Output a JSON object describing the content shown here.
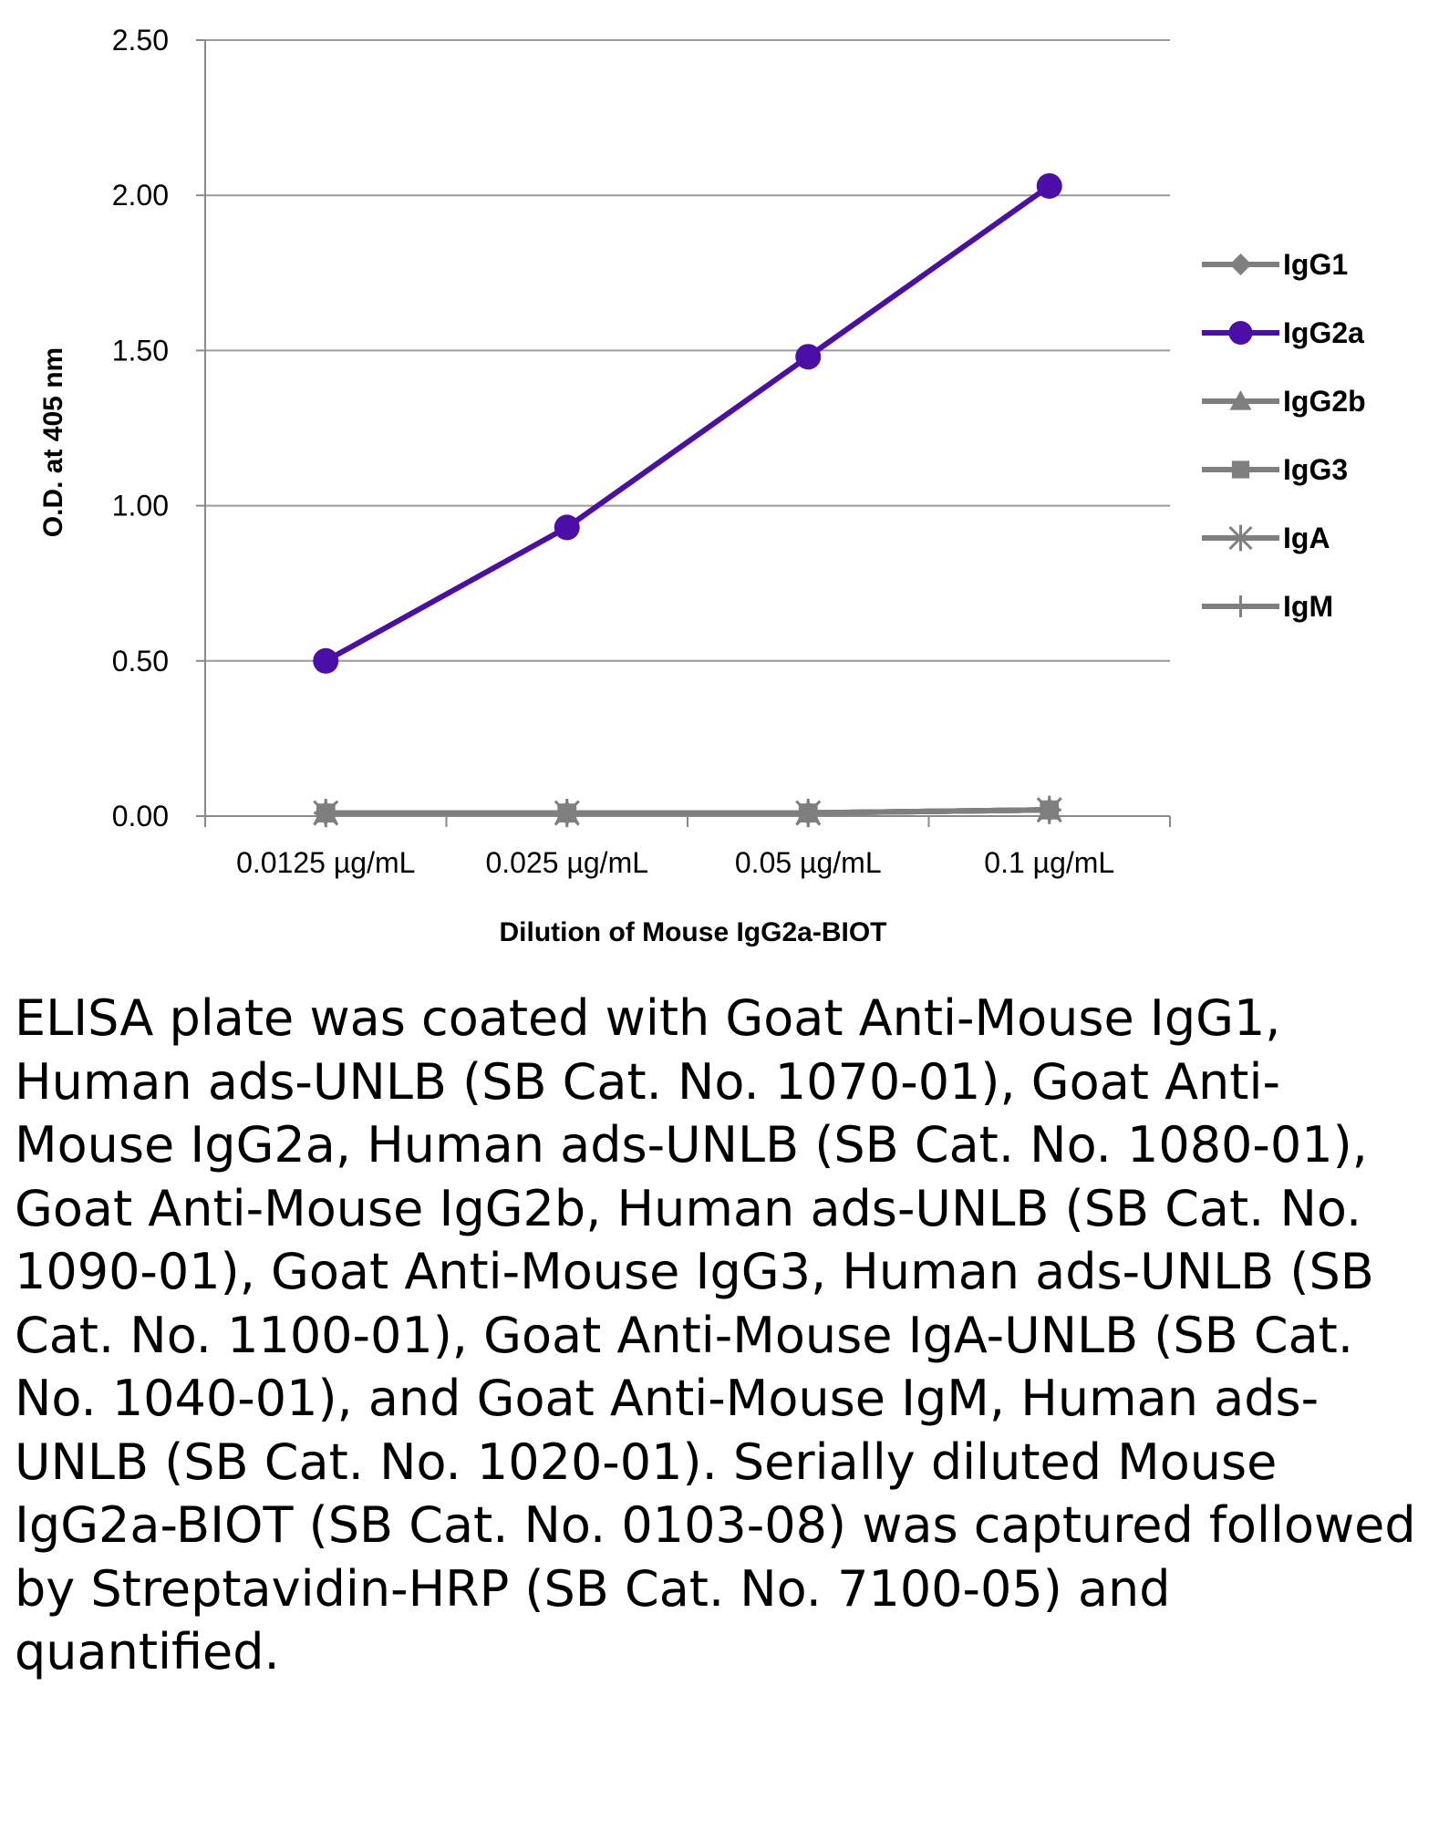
{
  "chart_data": {
    "type": "line",
    "title": "",
    "xlabel": "Dilution of Mouse IgG2a-BIOT",
    "ylabel": "O.D. at 405 nm",
    "categories": [
      "0.0125 µg/mL",
      "0.025 µg/mL",
      "0.05 µg/mL",
      "0.1 µg/mL"
    ],
    "ylim": [
      0,
      2.5
    ],
    "yticks": [
      "0.00",
      "0.50",
      "1.00",
      "1.50",
      "2.00",
      "2.50"
    ],
    "grid": true,
    "legend_position": "right",
    "series": [
      {
        "name": "IgG1",
        "marker": "diamond",
        "color": "#7f7f7f",
        "values": [
          0.01,
          0.01,
          0.01,
          0.02
        ]
      },
      {
        "name": "IgG2a",
        "marker": "circle",
        "color": "#4b0fa8",
        "values": [
          0.5,
          0.93,
          1.48,
          2.03
        ]
      },
      {
        "name": "IgG2b",
        "marker": "triangle",
        "color": "#7f7f7f",
        "values": [
          0.01,
          0.01,
          0.01,
          0.02
        ]
      },
      {
        "name": "IgG3",
        "marker": "square",
        "color": "#7f7f7f",
        "values": [
          0.01,
          0.01,
          0.01,
          0.02
        ]
      },
      {
        "name": "IgA",
        "marker": "star",
        "color": "#7f7f7f",
        "values": [
          0.01,
          0.01,
          0.01,
          0.02
        ]
      },
      {
        "name": "IgM",
        "marker": "plus",
        "color": "#7f7f7f",
        "values": [
          0.01,
          0.01,
          0.01,
          0.02
        ]
      }
    ]
  },
  "caption": "ELISA plate was coated with Goat Anti-Mouse IgG1, Human ads-UNLB (SB Cat. No. 1070-01), Goat Anti-Mouse IgG2a, Human ads-UNLB (SB Cat. No. 1080-01), Goat Anti-Mouse IgG2b, Human ads-UNLB (SB Cat. No. 1090-01), Goat Anti-Mouse IgG3, Human ads-UNLB (SB Cat. No. 1100-01), Goat Anti-Mouse IgA-UNLB (SB Cat. No. 1040-01), and Goat Anti-Mouse IgM, Human ads-UNLB (SB Cat. No. 1020-01).  Serially diluted Mouse IgG2a-BIOT (SB Cat. No. 0103-08) was captured followed by Streptavidin-HRP (SB Cat. No. 7100-05) and quantified."
}
